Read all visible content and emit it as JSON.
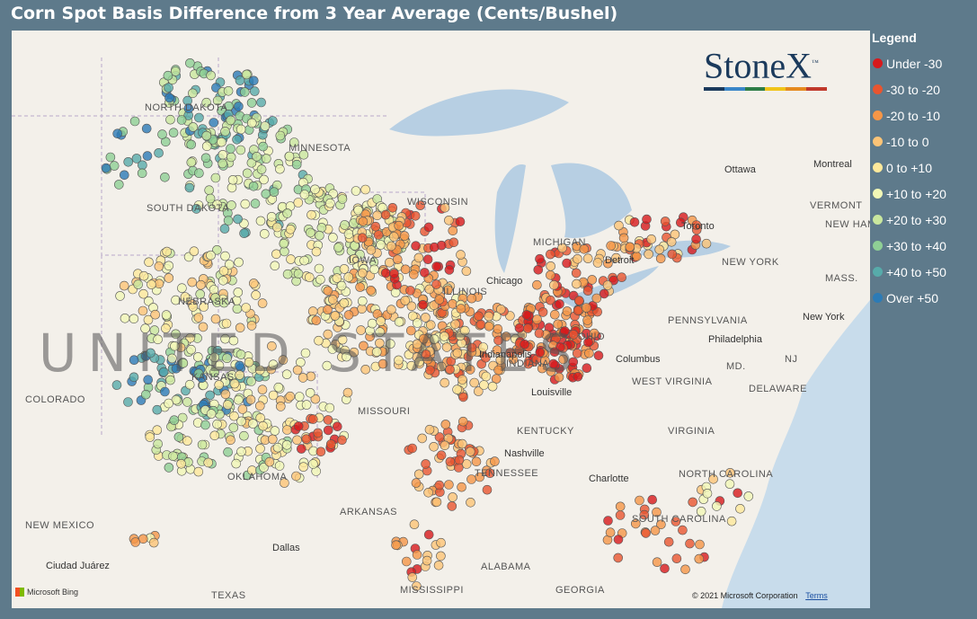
{
  "title": "Corn Spot Basis Difference from 3 Year Average (Cents/Bushel)",
  "legend": {
    "title": "Legend",
    "items": [
      {
        "label": "Under -30",
        "color": "#d7191c"
      },
      {
        "label": "-30 to -20",
        "color": "#e8552f"
      },
      {
        "label": "-20 to -10",
        "color": "#f59647"
      },
      {
        "label": "-10 to 0",
        "color": "#fdc477"
      },
      {
        "label": "0 to +10",
        "color": "#fee99b"
      },
      {
        "label": "+10 to +20",
        "color": "#f1f7b6"
      },
      {
        "label": "+20 to +30",
        "color": "#c9e79e"
      },
      {
        "label": "+30 to +40",
        "color": "#8fcf95"
      },
      {
        "label": "+40 to +50",
        "color": "#57abaa"
      },
      {
        "label": "Over +50",
        "color": "#2c7bb6"
      }
    ]
  },
  "brand": {
    "name": "StoneX",
    "trademark": "™",
    "colors": [
      "#1b3a5c",
      "#3a86c8",
      "#2d7d46",
      "#f0c419",
      "#e58a1f",
      "#c0392b"
    ]
  },
  "map": {
    "big_label": "UNITED STATES",
    "state_labels": [
      "NORTH DAKOTA",
      "MINNESOTA",
      "SOUTH DAKOTA",
      "WISCONSIN",
      "MICHIGAN",
      "NEBRASKA",
      "IOWA",
      "ILLINOIS",
      "INDIANA",
      "OHIO",
      "PENNSYLVANIA",
      "NEW YORK",
      "VERMONT",
      "NEW HAMPSHIRE",
      "MASS.",
      "COLORADO",
      "KANSAS",
      "MISSOURI",
      "KENTUCKY",
      "WEST VIRGINIA",
      "VIRGINIA",
      "MD.",
      "DELAWARE",
      "NJ",
      "OKLAHOMA",
      "ARKANSAS",
      "TENNESSEE",
      "NORTH CAROLINA",
      "SOUTH CAROLINA",
      "NEW MEXICO",
      "TEXAS",
      "MISSISSIPPI",
      "ALABAMA",
      "GEORGIA"
    ],
    "city_labels": [
      "Ottawa",
      "Montreal",
      "Toronto",
      "Detroit",
      "Chicago",
      "Columbus",
      "Indianapolis",
      "Louisville",
      "Nashville",
      "Philadelphia",
      "New York",
      "Charlotte",
      "Dallas",
      "Ciudad Juárez"
    ],
    "attribution_left": "Microsoft Bing",
    "copyright": "© 2021 Microsoft Corporation",
    "terms": "Terms"
  }
}
